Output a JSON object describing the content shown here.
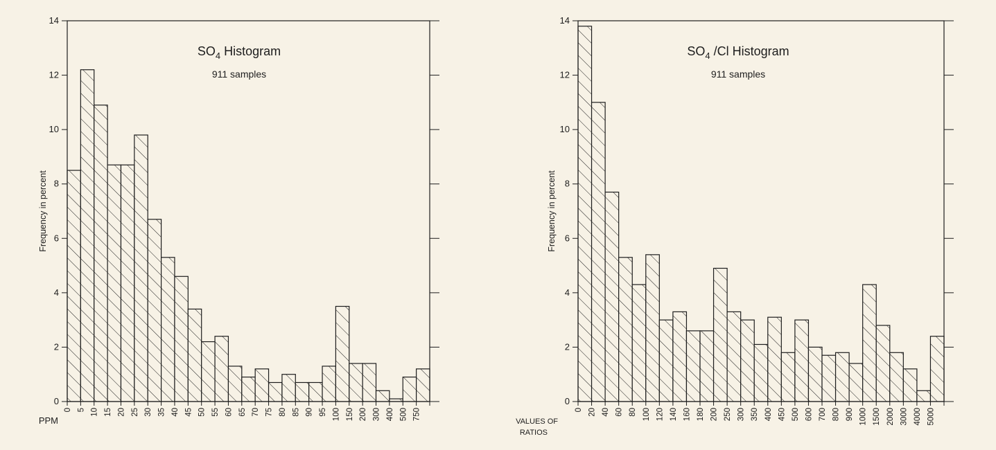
{
  "chart_data": [
    {
      "type": "bar",
      "title_main": "SO",
      "title_sub": "4",
      "title_rest": " Histogram",
      "subtitle": "911 samples",
      "ylabel": "Frequency in percent",
      "xlabel_prefix": "PPM",
      "ylim": [
        0,
        14
      ],
      "yticks": [
        "0",
        "2",
        "4",
        "6",
        "8",
        "10",
        "12",
        "14"
      ],
      "ytick_values": [
        0,
        2,
        4,
        6,
        8,
        10,
        12,
        14
      ],
      "categories": [
        "0",
        "5",
        "10",
        "15",
        "20",
        "25",
        "30",
        "35",
        "40",
        "45",
        "50",
        "55",
        "60",
        "65",
        "70",
        "75",
        "80",
        "85",
        "90",
        "95",
        "100",
        "150",
        "200",
        "300",
        "400",
        "500",
        "750"
      ],
      "values": [
        8.5,
        12.2,
        10.9,
        8.7,
        8.7,
        9.8,
        6.7,
        5.3,
        4.6,
        3.4,
        2.2,
        2.4,
        1.3,
        0.9,
        1.2,
        0.7,
        1.0,
        0.7,
        0.7,
        1.3,
        3.5,
        1.4,
        1.4,
        0.4,
        0.1,
        0.9,
        1.2
      ],
      "grid": false,
      "fill": "hatched",
      "color": "#1d1d1d"
    },
    {
      "type": "bar",
      "title_main": "SO",
      "title_sub": "4",
      "title_rest": " /Cl Histogram",
      "subtitle": "911 samples",
      "ylabel": "Frequency in percent",
      "xlabel_prefix_lines": [
        "VALUES OF",
        "RATIOS"
      ],
      "ylim": [
        0,
        14
      ],
      "yticks": [
        "0",
        "2",
        "4",
        "6",
        "8",
        "10",
        "12",
        "14"
      ],
      "ytick_values": [
        0,
        2,
        4,
        6,
        8,
        10,
        12,
        14
      ],
      "categories": [
        "0",
        "20",
        "40",
        "60",
        "80",
        "100",
        "120",
        "140",
        "160",
        "180",
        "200",
        "250",
        "300",
        "350",
        "400",
        "450",
        "500",
        "600",
        "700",
        "800",
        "900",
        "1000",
        "1500",
        "2000",
        "3000",
        "4000",
        "5000"
      ],
      "values": [
        13.8,
        11.0,
        7.7,
        5.3,
        4.3,
        5.4,
        3.0,
        3.3,
        2.6,
        2.6,
        4.9,
        3.3,
        3.0,
        2.1,
        3.1,
        1.8,
        3.0,
        2.0,
        1.7,
        1.8,
        1.4,
        4.3,
        2.8,
        1.8,
        1.2,
        0.4,
        2.4
      ],
      "grid": false,
      "fill": "hatched",
      "color": "#1d1d1d"
    }
  ]
}
